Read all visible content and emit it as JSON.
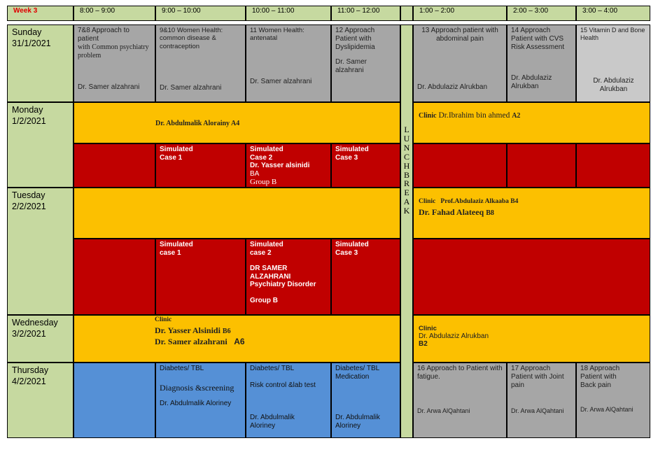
{
  "header": {
    "week": "Week 3",
    "slots": [
      "8:00 – 9:00",
      "9:00 – 10:00",
      "10:00 – 11:00",
      "11:00 – 12:00",
      "1:00 – 2:00",
      "2:00 – 3:00",
      "3:00 – 4:00"
    ]
  },
  "lunch_letters": [
    "L",
    "U",
    "N",
    "C",
    "H",
    "B",
    "R",
    "E",
    "A",
    "K"
  ],
  "days": {
    "sunday": {
      "name": "Sunday",
      "date": "31/1/2021",
      "c1": {
        "title": "7&8 Approach to patient",
        "subtitle": "with Common psychiatry problem",
        "doctor": "Dr. Samer alzahrani"
      },
      "c2": {
        "title": "9&10  Women Health: common disease & contraception",
        "doctor": "Dr. Samer alzahrani"
      },
      "c3": {
        "title": "11  Women Health: antenatal",
        "doctor": "Dr. Samer alzahrani"
      },
      "c4": {
        "title": "12 Approach Patient with Dyslipidemia",
        "doctor": "Dr. Samer alzahrani"
      },
      "c5": {
        "title": "13 Approach patient with abdominal pain",
        "doctor": "Dr. Abdulaziz Alrukban"
      },
      "c6": {
        "title": "14 Approach Patient with CVS Risk Assessment",
        "doctor": "Dr. Abdulaziz Alrukban"
      },
      "c7": {
        "title": "15 Vitamin D and Bone Health",
        "doctor": "Dr. Abdulaziz Alrukban"
      }
    },
    "monday": {
      "name": "Monday",
      "date": "1/2/2021",
      "am_top": "Dr. Abdulmalik   Alorainy  A4",
      "pm_top_clinic": "Clinic",
      "pm_top_doctor": "Dr.Ibrahim  bin ahmed",
      "pm_top_code": "A2",
      "sim1": "Simulated Case 1",
      "sim2": "Simulated Case 2",
      "sim2_doctor": "Dr. Yasser alsinidi",
      "sim2_code": "BA",
      "sim2_group": "Group B",
      "sim3": "Simulated Case 3"
    },
    "tuesday": {
      "name": "Tuesday",
      "date": "2/2/2021",
      "pm_clinic": "Clinic",
      "pm_doc1": "Prof.Abdulaziz Alkaaba B4",
      "pm_doc2": "Dr. Fahad Alateeq",
      "pm_doc2_code": "B8",
      "sim1": "Simulated case 1",
      "sim2": "Simulated case 2",
      "sim2_doctor": "DR SAMER ALZAHRANI",
      "sim2_topic": "Psychiatry Disorder",
      "sim2_group": "Group B",
      "sim3": "Simulated Case 3"
    },
    "wednesday": {
      "name": "Wednesday",
      "date": "3/2/2021",
      "am_clinic": "Clinic",
      "am_doc1": "Dr. Yasser Alsinidi",
      "am_doc1_code": "B6",
      "am_doc2": "Dr. Samer alzahrani",
      "am_doc2_code": "A6",
      "pm_clinic": "Clinic",
      "pm_doctor": "Dr. Abdulaziz Alrukban",
      "pm_code": "B2"
    },
    "thursday": {
      "name": "Thursday",
      "date": "4/2/2021",
      "c2": {
        "title": "Diabetes/ TBL",
        "topic": "Diagnosis &screening",
        "doctor": "Dr.  Abdulmalik Aloriney"
      },
      "c3": {
        "title": "Diabetes/ TBL",
        "topic": "Risk control &lab test",
        "doctor": "Dr.  Abdulmalik Aloriney"
      },
      "c4": {
        "title": "Diabetes/ TBL Medication",
        "doctor": "Dr.  Abdulmalik Aloriney"
      },
      "c5": {
        "title": "16 Approach to Patient with fatigue.",
        "doctor": "Dr. Arwa AlQahtani"
      },
      "c6": {
        "title": "17 Approach Patient with Joint pain",
        "doctor": "Dr. Arwa AlQahtani"
      },
      "c7": {
        "title": "18 Approach Patient with  Back pain",
        "doctor": "Dr. Arwa AlQahtani"
      }
    }
  }
}
